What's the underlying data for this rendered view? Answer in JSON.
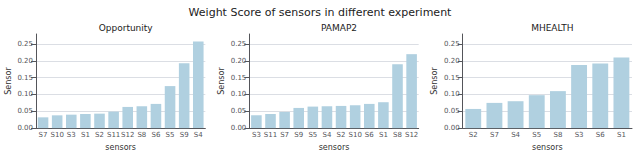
{
  "title": "Weight Score of sensors in different experiment",
  "chart_data": [
    {
      "type": "bar",
      "title": "Opportunity",
      "xlabel": "sensors",
      "ylabel": "Sensor",
      "categories": [
        "S7",
        "S10",
        "S3",
        "S1",
        "S2",
        "S11",
        "S12",
        "S8",
        "S6",
        "S5",
        "S9",
        "S4"
      ],
      "values": [
        0.032,
        0.038,
        0.04,
        0.042,
        0.043,
        0.049,
        0.063,
        0.065,
        0.072,
        0.125,
        0.193,
        0.258
      ],
      "color": "#b0d0e0",
      "ylim": [
        0,
        0.28
      ],
      "yticks": [
        {
          "value": 0.0,
          "label": "0.00"
        },
        0.05,
        {
          "value": 0.1,
          "label": "0.10"
        },
        0.15,
        {
          "value": 0.2,
          "label": "0.20"
        },
        0.25
      ],
      "grid": true
    },
    {
      "type": "bar",
      "title": "PAMAP2",
      "xlabel": "sensors",
      "ylabel": "Sensor",
      "categories": [
        "S3",
        "S11",
        "S7",
        "S9",
        "S5",
        "S4",
        "S2",
        "S10",
        "S6",
        "S1",
        "S8",
        "S12"
      ],
      "values": [
        0.038,
        0.042,
        0.048,
        0.06,
        0.064,
        0.065,
        0.066,
        0.068,
        0.072,
        0.077,
        0.19,
        0.22
      ],
      "color": "#b0d0e0",
      "ylim": [
        0,
        0.28
      ],
      "yticks": [
        {
          "value": 0.0,
          "label": "0.00"
        },
        0.05,
        {
          "value": 0.1,
          "label": "0.10"
        },
        0.15,
        {
          "value": 0.2,
          "label": "0.20"
        },
        0.25
      ],
      "grid": true
    },
    {
      "type": "bar",
      "title": "MHEALTH",
      "xlabel": "sensors",
      "ylabel": "Sensor",
      "categories": [
        "S2",
        "S7",
        "S4",
        "S5",
        "S8",
        "S3",
        "S6",
        "S1"
      ],
      "values": [
        0.057,
        0.075,
        0.08,
        0.098,
        0.11,
        0.188,
        0.192,
        0.21
      ],
      "color": "#b0d0e0",
      "ylim": [
        0,
        0.28
      ],
      "yticks": [
        {
          "value": 0.0,
          "label": "0.00"
        },
        0.05,
        {
          "value": 0.1,
          "label": "0.10"
        },
        0.15,
        {
          "value": 0.2,
          "label": "0.20"
        },
        0.25
      ],
      "grid": true
    }
  ]
}
